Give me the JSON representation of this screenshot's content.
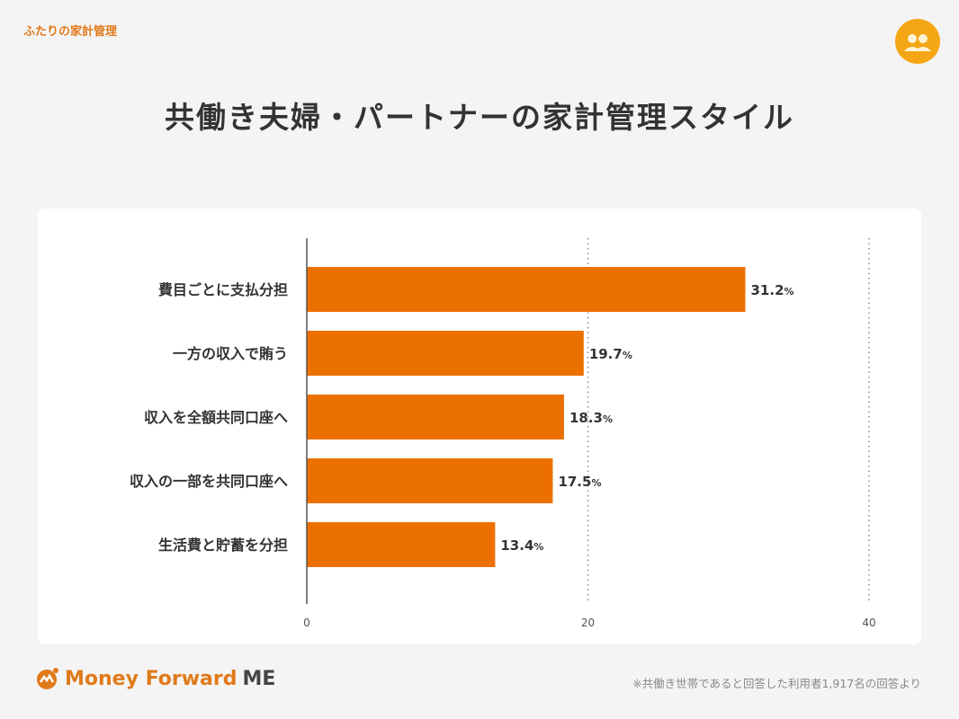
{
  "header": {
    "brand": "ふたりの家計管理",
    "avatar_icon": "couple-icon",
    "title": "共働き夫婦・パートナーの家計管理スタイル"
  },
  "chart_data": {
    "type": "bar",
    "orientation": "horizontal",
    "categories": [
      "費目ごとに支払分担",
      "一方の収入で賄う",
      "収入を全額共同口座へ",
      "収入の一部を共同口座へ",
      "生活費と貯蓄を分担"
    ],
    "values": [
      31.2,
      19.7,
      18.3,
      17.5,
      13.4
    ],
    "labels": [
      "31.2",
      "19.7",
      "18.3",
      "17.5",
      "13.4"
    ],
    "unit": "%",
    "xlim": [
      0,
      40
    ],
    "xticks": [
      "0",
      "20",
      "40"
    ],
    "grid": "vertical dotted",
    "bar_color": "#ec7000"
  },
  "footer": {
    "logo_main": "Money Forward",
    "logo_suffix": "ME",
    "note": "※共働き世帯であると回答した利用者1,917名の回答より"
  }
}
